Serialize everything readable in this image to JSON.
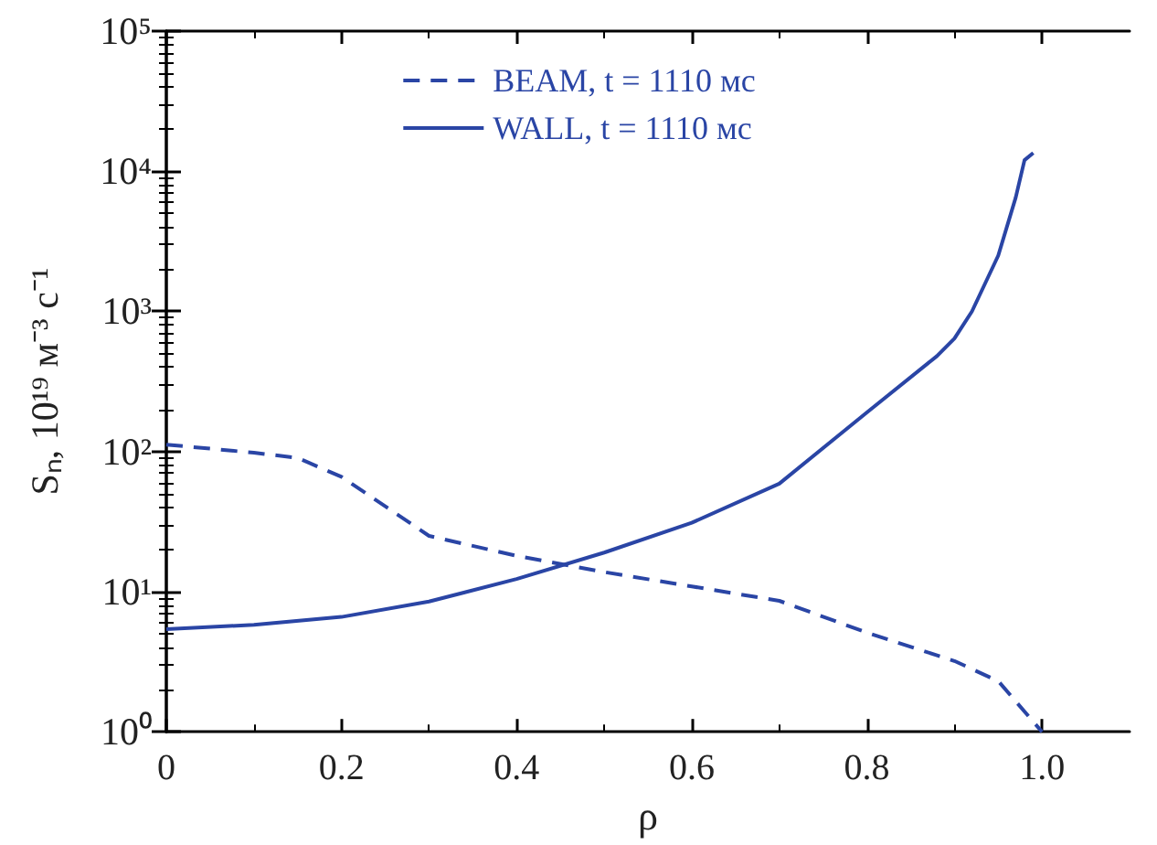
{
  "chart_data": {
    "type": "line",
    "xlabel": "ρ",
    "ylabel": "Sₙ, 10¹⁹ м⁻³ с⁻¹",
    "xlim": [
      0,
      1.1
    ],
    "xticks": [
      0,
      0.2,
      0.4,
      0.6,
      0.8,
      {
        "value": 1,
        "label": "1.0"
      }
    ],
    "ylim": [
      1,
      100000
    ],
    "yticks": [
      {
        "value": 1,
        "label": "10⁰"
      },
      {
        "value": 10,
        "label": "10¹"
      },
      {
        "value": 100,
        "label": "10²"
      },
      {
        "value": 1000,
        "label": "10³"
      },
      {
        "value": 10000,
        "label": "10⁴"
      },
      {
        "value": 100000,
        "label": "10⁵"
      }
    ],
    "log": "y",
    "grid": false,
    "legend": "top",
    "marker": "none",
    "series": [
      {
        "name": "BEAM, t = 1110 мс",
        "color": "#2a45a5",
        "line_style": "dashed",
        "x": [
          0,
          0.1,
          0.15,
          0.2,
          0.3,
          0.4,
          0.5,
          0.6,
          0.7,
          0.8,
          0.9,
          0.95,
          1.0
        ],
        "values": [
          112,
          98,
          90,
          66,
          25,
          18,
          13.8,
          10.9,
          8.6,
          5.1,
          3.2,
          2.3,
          1.0
        ]
      },
      {
        "name": "WALL, t = 1110 мс",
        "color": "#2a45a5",
        "line_style": "solid",
        "x": [
          0,
          0.1,
          0.2,
          0.3,
          0.4,
          0.5,
          0.6,
          0.7,
          0.8,
          0.88,
          0.9,
          0.92,
          0.95,
          0.97,
          0.98,
          0.99
        ],
        "values": [
          5.4,
          5.8,
          6.6,
          8.5,
          12.3,
          19,
          31,
          59,
          190,
          480,
          640,
          1000,
          2500,
          6500,
          12000,
          13500
        ]
      }
    ]
  }
}
